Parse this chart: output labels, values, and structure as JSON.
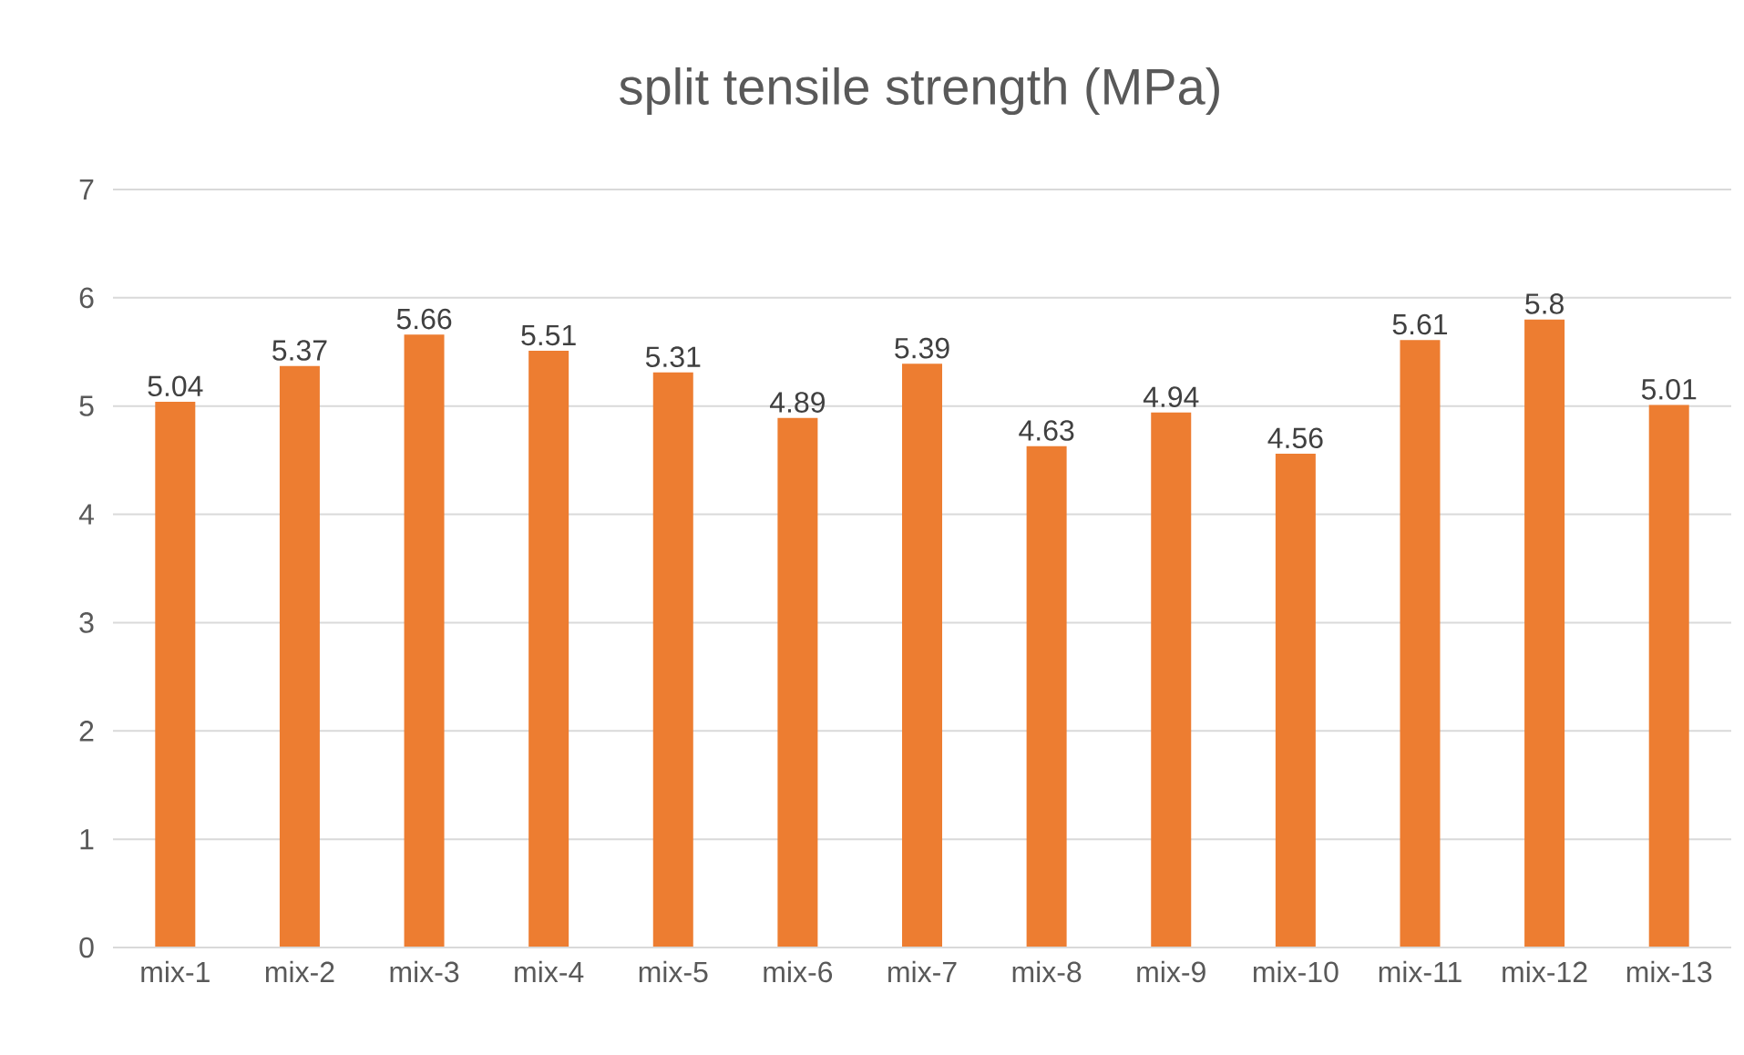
{
  "chart_data": {
    "type": "bar",
    "title": "split tensile strength (MPa)",
    "categories": [
      "mix-1",
      "mix-2",
      "mix-3",
      "mix-4",
      "mix-5",
      "mix-6",
      "mix-7",
      "mix-8",
      "mix-9",
      "mix-10",
      "mix-11",
      "mix-12",
      "mix-13"
    ],
    "values": [
      5.04,
      5.37,
      5.66,
      5.51,
      5.31,
      4.89,
      5.39,
      4.63,
      4.94,
      4.56,
      5.61,
      5.8,
      5.01
    ],
    "value_labels": [
      "5.04",
      "5.37",
      "5.66",
      "5.51",
      "5.31",
      "4.89",
      "5.39",
      "4.63",
      "4.94",
      "4.56",
      "5.61",
      "5.8",
      "5.01"
    ],
    "color": "#ed7d31",
    "ylim": [
      0,
      7
    ],
    "yticks": [
      0,
      1,
      2,
      3,
      4,
      5,
      6,
      7
    ],
    "grid": "y"
  }
}
